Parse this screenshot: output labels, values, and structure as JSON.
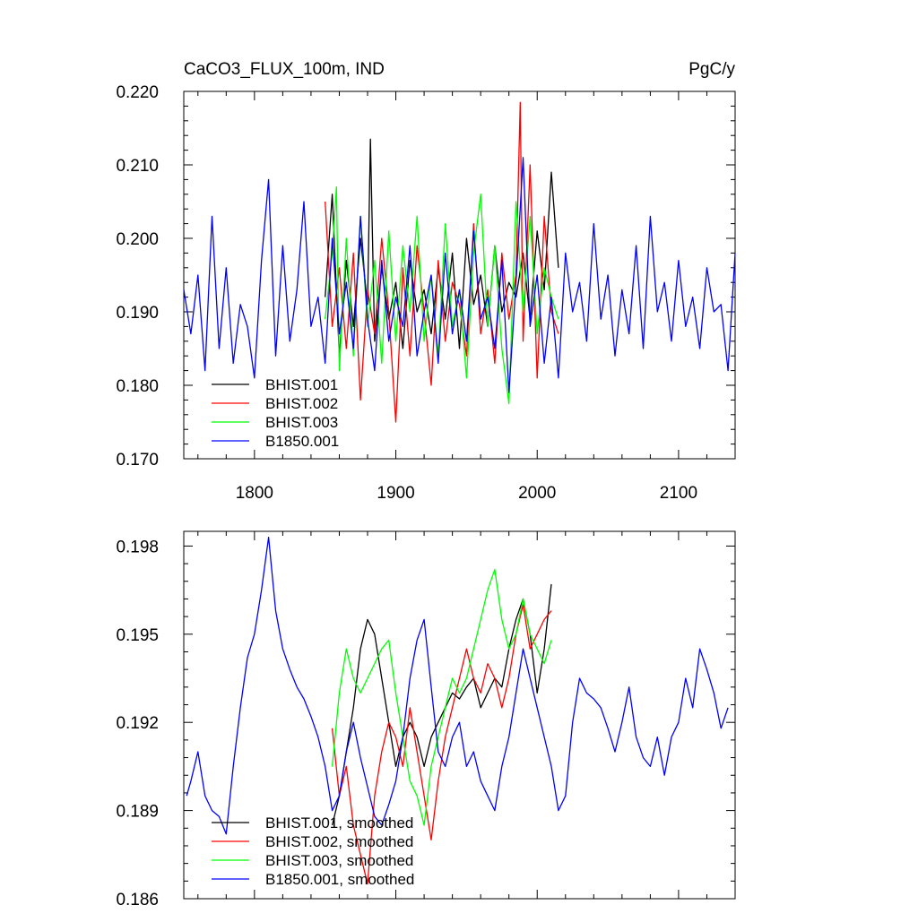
{
  "chart_data": [
    {
      "type": "line",
      "title": "CaCO3_FLUX_100m, IND",
      "units": "PgC/y",
      "xlabel": "",
      "ylabel": "",
      "xlim": [
        1750,
        2140
      ],
      "ylim": [
        0.17,
        0.22
      ],
      "xticks": [
        1800,
        1900,
        2000,
        2100
      ],
      "xtick_labels": [
        "1800",
        "1900",
        "2000",
        "2100"
      ],
      "yticks": [
        0.17,
        0.18,
        0.19,
        0.2,
        0.21,
        0.22
      ],
      "ytick_labels": [
        "0.170",
        "0.180",
        "0.190",
        "0.200",
        "0.210",
        "0.220"
      ],
      "legend_position": "bottom-left",
      "series": [
        {
          "name": "BHIST.001",
          "color": "#000000",
          "x": [
            1850,
            1855,
            1860,
            1865,
            1870,
            1875,
            1880,
            1882,
            1885,
            1890,
            1895,
            1900,
            1905,
            1910,
            1915,
            1920,
            1925,
            1930,
            1935,
            1940,
            1945,
            1950,
            1955,
            1960,
            1965,
            1970,
            1975,
            1980,
            1985,
            1990,
            1995,
            2000,
            2005,
            2010,
            2015
          ],
          "values": [
            0.192,
            0.206,
            0.184,
            0.197,
            0.188,
            0.2,
            0.191,
            0.2135,
            0.186,
            0.196,
            0.189,
            0.194,
            0.185,
            0.197,
            0.19,
            0.193,
            0.187,
            0.196,
            0.189,
            0.198,
            0.185,
            0.2,
            0.191,
            0.195,
            0.188,
            0.199,
            0.19,
            0.194,
            0.192,
            0.198,
            0.189,
            0.201,
            0.193,
            0.209,
            0.196
          ]
        },
        {
          "name": "BHIST.002",
          "color": "#ff0000",
          "x": [
            1850,
            1855,
            1860,
            1865,
            1870,
            1875,
            1880,
            1885,
            1890,
            1895,
            1900,
            1905,
            1910,
            1915,
            1920,
            1925,
            1930,
            1935,
            1940,
            1945,
            1950,
            1955,
            1960,
            1965,
            1970,
            1975,
            1980,
            1985,
            1988,
            1990,
            1995,
            2000,
            2005,
            2010,
            2015
          ],
          "values": [
            0.205,
            0.188,
            0.196,
            0.185,
            0.198,
            0.178,
            0.193,
            0.187,
            0.2,
            0.19,
            0.175,
            0.196,
            0.184,
            0.199,
            0.19,
            0.18,
            0.197,
            0.186,
            0.194,
            0.191,
            0.184,
            0.202,
            0.187,
            0.193,
            0.183,
            0.198,
            0.189,
            0.195,
            0.2185,
            0.186,
            0.21,
            0.181,
            0.203,
            0.19,
            0.187
          ]
        },
        {
          "name": "BHIST.003",
          "color": "#00ff00",
          "x": [
            1850,
            1855,
            1858,
            1860,
            1865,
            1870,
            1875,
            1880,
            1885,
            1890,
            1895,
            1900,
            1905,
            1910,
            1915,
            1920,
            1925,
            1930,
            1935,
            1940,
            1945,
            1950,
            1955,
            1960,
            1965,
            1970,
            1975,
            1980,
            1985,
            1990,
            1995,
            2000,
            2005,
            2010,
            2015
          ],
          "values": [
            0.189,
            0.198,
            0.207,
            0.182,
            0.2,
            0.184,
            0.203,
            0.188,
            0.197,
            0.183,
            0.201,
            0.186,
            0.199,
            0.19,
            0.203,
            0.186,
            0.195,
            0.184,
            0.202,
            0.188,
            0.193,
            0.181,
            0.198,
            0.206,
            0.188,
            0.199,
            0.185,
            0.1775,
            0.205,
            0.19,
            0.203,
            0.187,
            0.196,
            0.192,
            0.189
          ]
        },
        {
          "name": "B1850.001",
          "color": "#0000ff",
          "x": [
            1750,
            1755,
            1760,
            1765,
            1770,
            1775,
            1780,
            1785,
            1790,
            1795,
            1800,
            1805,
            1810,
            1815,
            1820,
            1825,
            1830,
            1835,
            1840,
            1845,
            1850,
            1855,
            1860,
            1865,
            1870,
            1875,
            1880,
            1885,
            1890,
            1895,
            1900,
            1905,
            1910,
            1915,
            1920,
            1925,
            1930,
            1935,
            1940,
            1945,
            1950,
            1955,
            1960,
            1965,
            1970,
            1975,
            1980,
            1985,
            1990,
            1995,
            2000,
            2005,
            2010,
            2015,
            2020,
            2025,
            2030,
            2035,
            2040,
            2045,
            2050,
            2055,
            2060,
            2065,
            2070,
            2075,
            2080,
            2085,
            2090,
            2095,
            2100,
            2105,
            2110,
            2115,
            2120,
            2125,
            2130,
            2135,
            2140
          ],
          "values": [
            0.193,
            0.187,
            0.195,
            0.182,
            0.203,
            0.185,
            0.196,
            0.183,
            0.191,
            0.188,
            0.181,
            0.197,
            0.208,
            0.184,
            0.199,
            0.186,
            0.193,
            0.205,
            0.188,
            0.192,
            0.183,
            0.2,
            0.187,
            0.194,
            0.185,
            0.203,
            0.189,
            0.182,
            0.197,
            0.186,
            0.192,
            0.188,
            0.199,
            0.184,
            0.19,
            0.195,
            0.183,
            0.198,
            0.187,
            0.193,
            0.186,
            0.201,
            0.189,
            0.192,
            0.185,
            0.197,
            0.179,
            0.194,
            0.211,
            0.188,
            0.195,
            0.183,
            0.192,
            0.181,
            0.198,
            0.19,
            0.194,
            0.186,
            0.202,
            0.189,
            0.195,
            0.184,
            0.193,
            0.187,
            0.199,
            0.185,
            0.203,
            0.19,
            0.194,
            0.186,
            0.197,
            0.188,
            0.192,
            0.185,
            0.196,
            0.19,
            0.191,
            0.182,
            0.198
          ]
        }
      ]
    },
    {
      "type": "line",
      "title": "",
      "xlabel": "",
      "ylabel": "",
      "xlim": [
        1750,
        2140
      ],
      "ylim": [
        0.186,
        0.1985
      ],
      "xticks": [
        1800,
        1900,
        2000,
        2100
      ],
      "yticks": [
        0.186,
        0.189,
        0.192,
        0.195,
        0.198
      ],
      "ytick_labels": [
        "0.186",
        "0.189",
        "0.192",
        "0.195",
        "0.198"
      ],
      "legend_position": "bottom-left",
      "series": [
        {
          "name": "BHIST.001, smoothed",
          "color": "#000000",
          "x": [
            1855,
            1860,
            1865,
            1870,
            1875,
            1880,
            1885,
            1890,
            1895,
            1900,
            1905,
            1910,
            1915,
            1920,
            1925,
            1930,
            1935,
            1940,
            1945,
            1950,
            1955,
            1960,
            1965,
            1970,
            1975,
            1980,
            1985,
            1990,
            1995,
            2000,
            2005,
            2010
          ],
          "values": [
            0.1885,
            0.1895,
            0.191,
            0.1925,
            0.1945,
            0.1955,
            0.195,
            0.1935,
            0.192,
            0.1905,
            0.1915,
            0.192,
            0.1915,
            0.1905,
            0.1915,
            0.192,
            0.1925,
            0.193,
            0.1928,
            0.1932,
            0.1935,
            0.1925,
            0.193,
            0.1935,
            0.1932,
            0.1945,
            0.1955,
            0.1962,
            0.195,
            0.193,
            0.1945,
            0.1967
          ]
        },
        {
          "name": "BHIST.002, smoothed",
          "color": "#ff0000",
          "x": [
            1855,
            1860,
            1865,
            1870,
            1875,
            1880,
            1885,
            1890,
            1895,
            1900,
            1905,
            1910,
            1915,
            1920,
            1925,
            1930,
            1935,
            1940,
            1945,
            1950,
            1955,
            1960,
            1965,
            1970,
            1975,
            1980,
            1985,
            1990,
            1995,
            2000,
            2005,
            2010
          ],
          "values": [
            0.1918,
            0.1895,
            0.1905,
            0.1885,
            0.1875,
            0.1865,
            0.1895,
            0.191,
            0.192,
            0.1915,
            0.1905,
            0.1925,
            0.191,
            0.1895,
            0.188,
            0.19,
            0.1915,
            0.1925,
            0.1935,
            0.1945,
            0.1935,
            0.193,
            0.194,
            0.1935,
            0.1925,
            0.1935,
            0.195,
            0.196,
            0.1945,
            0.195,
            0.1955,
            0.1958
          ]
        },
        {
          "name": "BHIST.003, smoothed",
          "color": "#00ff00",
          "x": [
            1855,
            1860,
            1865,
            1870,
            1875,
            1880,
            1885,
            1890,
            1895,
            1900,
            1905,
            1910,
            1915,
            1920,
            1925,
            1930,
            1935,
            1940,
            1945,
            1950,
            1955,
            1960,
            1965,
            1970,
            1975,
            1980,
            1985,
            1990,
            1995,
            2000,
            2005,
            2010
          ],
          "values": [
            0.1905,
            0.193,
            0.1945,
            0.1935,
            0.193,
            0.1935,
            0.194,
            0.1945,
            0.1948,
            0.193,
            0.1915,
            0.19,
            0.1895,
            0.1885,
            0.1905,
            0.1915,
            0.1925,
            0.1935,
            0.193,
            0.1935,
            0.1945,
            0.1955,
            0.1965,
            0.1972,
            0.1955,
            0.1945,
            0.195,
            0.1962,
            0.195,
            0.1945,
            0.194,
            0.1948
          ]
        },
        {
          "name": "B1850.001, smoothed",
          "color": "#0000ff",
          "x": [
            1752,
            1755,
            1760,
            1765,
            1770,
            1775,
            1780,
            1785,
            1790,
            1795,
            1800,
            1805,
            1810,
            1815,
            1820,
            1825,
            1830,
            1835,
            1840,
            1845,
            1850,
            1855,
            1860,
            1865,
            1870,
            1875,
            1880,
            1885,
            1890,
            1895,
            1900,
            1905,
            1910,
            1915,
            1920,
            1925,
            1930,
            1935,
            1940,
            1945,
            1950,
            1955,
            1960,
            1965,
            1970,
            1975,
            1980,
            1985,
            1990,
            1995,
            2000,
            2005,
            2010,
            2015,
            2020,
            2025,
            2030,
            2035,
            2040,
            2045,
            2050,
            2055,
            2060,
            2065,
            2070,
            2075,
            2080,
            2085,
            2090,
            2095,
            2100,
            2105,
            2110,
            2115,
            2120,
            2125,
            2130,
            2135
          ],
          "values": [
            0.1895,
            0.19,
            0.191,
            0.1895,
            0.189,
            0.1888,
            0.1882,
            0.1905,
            0.1925,
            0.1942,
            0.195,
            0.1965,
            0.1983,
            0.1958,
            0.1945,
            0.1938,
            0.1932,
            0.1928,
            0.1922,
            0.1915,
            0.1905,
            0.189,
            0.1895,
            0.191,
            0.192,
            0.1908,
            0.1898,
            0.1888,
            0.1885,
            0.1892,
            0.19,
            0.1915,
            0.1935,
            0.1948,
            0.1955,
            0.1932,
            0.191,
            0.1905,
            0.1915,
            0.192,
            0.1905,
            0.191,
            0.19,
            0.1895,
            0.189,
            0.1905,
            0.1915,
            0.193,
            0.1945,
            0.1935,
            0.1925,
            0.1915,
            0.1905,
            0.189,
            0.1895,
            0.192,
            0.1935,
            0.193,
            0.1928,
            0.1925,
            0.1918,
            0.191,
            0.192,
            0.1932,
            0.1915,
            0.1908,
            0.1905,
            0.1915,
            0.1902,
            0.1915,
            0.192,
            0.1935,
            0.1925,
            0.1945,
            0.1938,
            0.193,
            0.1918,
            0.1925
          ]
        }
      ]
    }
  ]
}
